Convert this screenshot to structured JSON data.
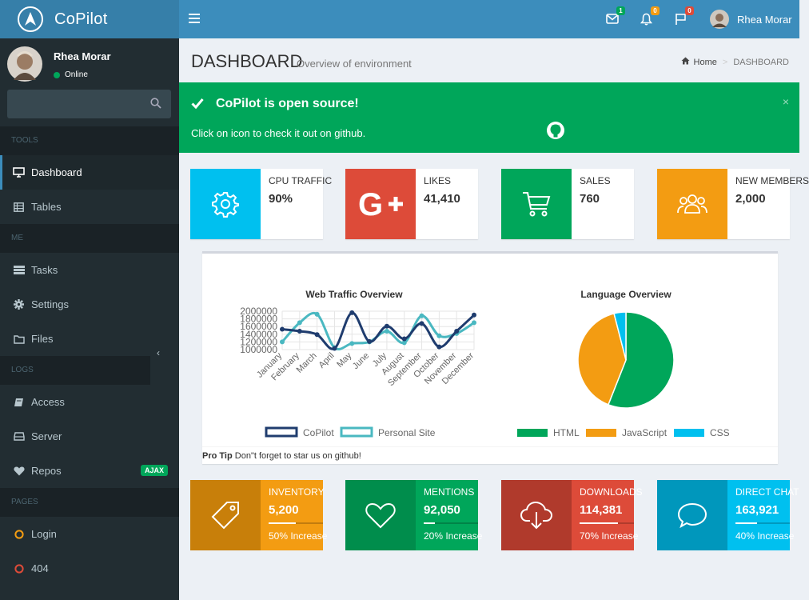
{
  "brand": {
    "name": "CoPilot"
  },
  "topbar": {
    "messages_count": "1",
    "notifications_count": "0",
    "tasks_count": "0",
    "user_name": "Rhea Morar"
  },
  "sidebar": {
    "user_name": "Rhea Morar",
    "user_status": "Online",
    "search_placeholder": "",
    "sections": {
      "tools": "TOOLS",
      "me": "ME",
      "logs": "LOGS",
      "pages": "PAGES"
    },
    "items": {
      "dashboard": "Dashboard",
      "tables": "Tables",
      "tasks": "Tasks",
      "settings": "Settings",
      "files": "Files",
      "access": "Access",
      "server": "Server",
      "repos": "Repos",
      "repos_badge": "AJAX",
      "login": "Login",
      "e404": "404"
    }
  },
  "header": {
    "title": "DASHBOARD",
    "subtitle": "Overview of environment",
    "breadcrumb_home": "Home",
    "breadcrumb_current": "DASHBOARD"
  },
  "callout": {
    "title": "CoPilot is open source!",
    "text": "Click on icon to check it out on github.",
    "close": "×"
  },
  "info_boxes": [
    {
      "label": "CPU TRAFFIC",
      "value": "90%",
      "color": "#00c0ef",
      "icon": "gear-icon"
    },
    {
      "label": "LIKES",
      "value": "41,410",
      "color": "#dd4b39",
      "icon": "google-plus-icon"
    },
    {
      "label": "SALES",
      "value": "760",
      "color": "#00a65a",
      "icon": "cart-icon"
    },
    {
      "label": "NEW MEMBERS",
      "value": "2,000",
      "color": "#f39c12",
      "icon": "users-icon"
    }
  ],
  "charts": {
    "footer_bold": "Pro Tip",
    "footer_text": " Don\"t forget to star us on github!"
  },
  "chart_data": [
    {
      "type": "line",
      "title": "Web Traffic Overview",
      "categories": [
        "January",
        "February",
        "March",
        "April",
        "May",
        "June",
        "July",
        "August",
        "September",
        "October",
        "November",
        "December"
      ],
      "yticks": [
        "2000000",
        "1800000",
        "1600000",
        "1400000",
        "1200000",
        "1000000"
      ],
      "ylim": [
        1000000,
        2000000
      ],
      "series": [
        {
          "name": "CoPilot",
          "color": "#1f3c6e",
          "values": [
            1530000,
            1480000,
            1390000,
            1030000,
            1960000,
            1210000,
            1610000,
            1280000,
            1680000,
            1070000,
            1480000,
            1900000
          ]
        },
        {
          "name": "Personal Site",
          "color": "#4ab8c1",
          "values": [
            1200000,
            1700000,
            1920000,
            1050000,
            1160000,
            1200000,
            1480000,
            1180000,
            1880000,
            1360000,
            1420000,
            1700000
          ]
        }
      ]
    },
    {
      "type": "pie",
      "title": "Language Overview",
      "categories": [
        "HTML",
        "JavaScript",
        "CSS"
      ],
      "values": [
        56,
        40,
        4
      ],
      "colors": [
        "#00a65a",
        "#f39c12",
        "#00c0ef"
      ]
    }
  ],
  "bottom_boxes": [
    {
      "label": "INVENTORY",
      "value": "5,200",
      "progress": 50,
      "desc": "50% Increase",
      "color": "#f39c12",
      "icon_bg": "#c87f0a",
      "icon": "tag-icon"
    },
    {
      "label": "MENTIONS",
      "value": "92,050",
      "progress": 20,
      "desc": "20% Increase",
      "color": "#00a65a",
      "icon_bg": "#008d4c",
      "icon": "heart-icon"
    },
    {
      "label": "DOWNLOADS",
      "value": "114,381",
      "progress": 70,
      "desc": "70% Increase",
      "color": "#dd4b39",
      "icon_bg": "#b03a2c",
      "icon": "cloud-download-icon"
    },
    {
      "label": "DIRECT CHAT",
      "value": "163,921",
      "progress": 40,
      "desc": "40% Increase",
      "color": "#00c0ef",
      "icon_bg": "#0097bc",
      "icon": "chat-icon"
    }
  ]
}
